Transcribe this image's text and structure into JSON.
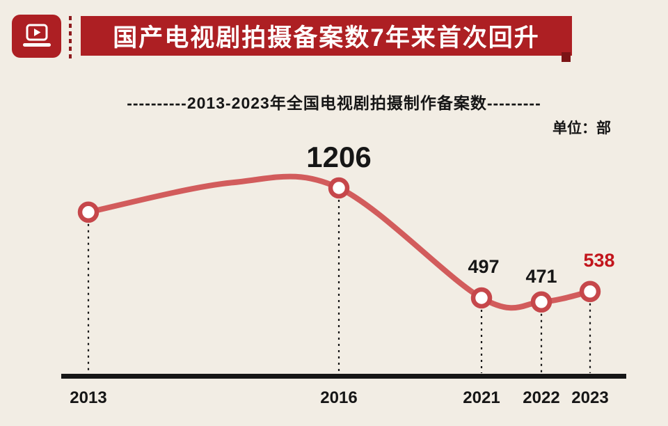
{
  "colors": {
    "background": "#f2ede4",
    "banner_red": "#ad1f23",
    "banner_shadow": "#7c1416",
    "line_red": "#d25c5c",
    "marker_ring": "#c6474b",
    "label_red": "#c2151c",
    "text_black": "#161616"
  },
  "header": {
    "title": "国产电视剧拍摄备案数7年来首次回升",
    "logo_icon": "laptop-play-icon"
  },
  "chart": {
    "subtitle": "----------2013-2023年全国电视剧拍摄制作备案数---------",
    "unit_label": "单位：部"
  },
  "chart_data": {
    "type": "line",
    "title": "2013-2023年全国电视剧拍摄制作备案数",
    "unit": "部",
    "x_ticks": [
      "2013",
      "2016",
      "2021",
      "2022",
      "2023"
    ],
    "ylim": [
      0,
      1300
    ],
    "grid": false,
    "legend": "none",
    "points": [
      {
        "year": "2013",
        "value": 1050,
        "estimated": true,
        "marker": true,
        "dashed": true,
        "tick": "2013"
      },
      {
        "year": "2015",
        "value": 1240,
        "estimated": true,
        "marker": false,
        "dashed": false
      },
      {
        "year": "2016",
        "value": 1206,
        "estimated": false,
        "marker": true,
        "dashed": true,
        "tick": "2016",
        "label": "1206",
        "label_color": "#161616"
      },
      {
        "year": "2021",
        "value": 497,
        "estimated": false,
        "marker": true,
        "dashed": true,
        "tick": "2021",
        "label": "497",
        "label_color": "#161616"
      },
      {
        "year": "2022",
        "value": 471,
        "estimated": false,
        "marker": true,
        "dashed": true,
        "tick": "2022",
        "label": "471",
        "label_color": "#161616"
      },
      {
        "year": "2023",
        "value": 538,
        "estimated": false,
        "marker": true,
        "dashed": true,
        "tick": "2023",
        "label": "538",
        "label_color": "#c2151c"
      }
    ]
  }
}
